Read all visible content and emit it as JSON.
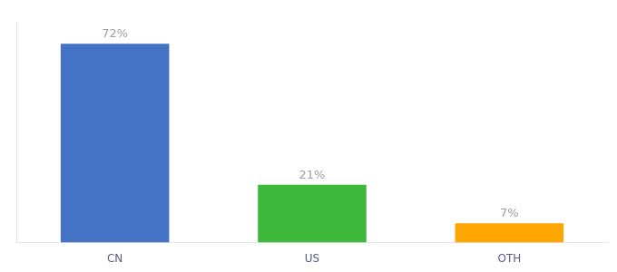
{
  "chart_data": {
    "type": "bar",
    "categories": [
      "CN",
      "US",
      "OTH"
    ],
    "values": [
      72,
      21,
      7
    ],
    "value_labels": [
      "72%",
      "21%",
      "7%"
    ],
    "colors": [
      "#4472C4",
      "#3DB83B",
      "#FFA500"
    ],
    "ylim": [
      0,
      80
    ],
    "grid": false,
    "legend": false,
    "data_labels": true,
    "tick_labels": "x"
  }
}
